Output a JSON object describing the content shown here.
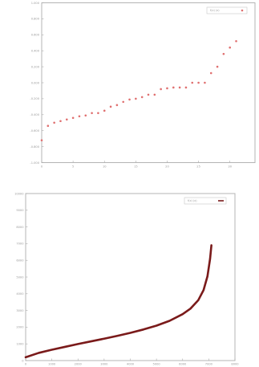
{
  "chart_data": [
    {
      "type": "scatter",
      "title": "",
      "xlabel": "",
      "ylabel": "",
      "xlim": [
        0,
        34
      ],
      "ylim": [
        -1,
        1
      ],
      "xticks": [
        0,
        5,
        10,
        15,
        20,
        25,
        30
      ],
      "yticks": [
        -1,
        -0.8,
        -0.6,
        -0.4,
        -0.2,
        0,
        0.2,
        0.4,
        0.6,
        0.8,
        1
      ],
      "ytick_labels": [
        "-1.000",
        "-0.800",
        "-0.600",
        "-0.400",
        "-0.200",
        "0.000",
        "0.200",
        "0.400",
        "0.600",
        "0.800",
        "1.000"
      ],
      "legend": {
        "placement": "top-right",
        "entries": [
          "f(x) (x)"
        ]
      },
      "grid": false,
      "marker_color": "#e07070",
      "series": [
        {
          "name": "f(x) (x)",
          "x": [
            0,
            1,
            2,
            3,
            4,
            5,
            6,
            7,
            8,
            9,
            10,
            11,
            12,
            13,
            14,
            15,
            16,
            17,
            18,
            19,
            20,
            21,
            22,
            23,
            24,
            25,
            26,
            27,
            28,
            29,
            30,
            31
          ],
          "y": [
            -0.72,
            -0.54,
            -0.5,
            -0.48,
            -0.46,
            -0.44,
            -0.42,
            -0.41,
            -0.38,
            -0.38,
            -0.35,
            -0.3,
            -0.28,
            -0.24,
            -0.21,
            -0.2,
            -0.18,
            -0.15,
            -0.15,
            -0.08,
            -0.07,
            -0.06,
            -0.06,
            -0.06,
            0.0,
            0.0,
            0.0,
            0.12,
            0.2,
            0.36,
            0.44,
            0.52
          ]
        }
      ]
    },
    {
      "type": "line",
      "title": "",
      "xlabel": "",
      "ylabel": "",
      "xlim": [
        0,
        8000
      ],
      "ylim": [
        0,
        10000
      ],
      "xticks": [
        0,
        1000,
        2000,
        3000,
        4000,
        5000,
        6000,
        7000,
        8000
      ],
      "xtick_labels": [
        "0",
        "1000",
        "2000",
        "3000",
        "4000",
        "5000",
        "6000",
        "7000",
        "8000"
      ],
      "yticks": [
        0,
        1000,
        2000,
        3000,
        4000,
        5000,
        6000,
        7000,
        8000,
        9000,
        10000
      ],
      "ytick_labels": [
        "0",
        "1000",
        "2000",
        "3000",
        "4000",
        "5000",
        "6000",
        "7000",
        "8000",
        "9000",
        "10000"
      ],
      "legend": {
        "placement": "top-right",
        "entries": [
          "f(x) (x)"
        ]
      },
      "grid": false,
      "line_color": "#7a1a1a",
      "series": [
        {
          "name": "f(x) (x)",
          "x": [
            0,
            500,
            1000,
            1500,
            2000,
            2500,
            3000,
            3500,
            4000,
            4500,
            5000,
            5500,
            6000,
            6300,
            6600,
            6800,
            6950,
            7050,
            7100
          ],
          "y": [
            200,
            460,
            650,
            820,
            990,
            1150,
            1310,
            1480,
            1660,
            1860,
            2090,
            2380,
            2780,
            3110,
            3620,
            4220,
            5050,
            6100,
            6900
          ]
        }
      ]
    }
  ]
}
